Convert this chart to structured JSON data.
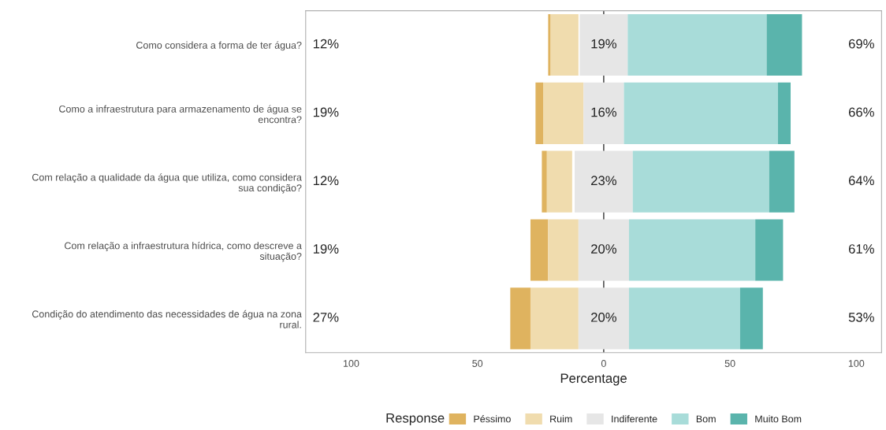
{
  "chart_data": {
    "type": "bar",
    "orientation": "horizontal",
    "xlabel": "Percentage",
    "legend_title": "Response",
    "legend": "bottom",
    "grid": false,
    "categories": [
      "Como considera a forma de ter água?",
      "Como a infraestrutura para armazenamento de água se\nencontra?",
      "Com relação a qualidade da água que utiliza, como considera\nsua condição?",
      "Com relação a infraestrutura hídrica, como descreve a\nsituação?",
      "Condição do atendimento das necessidades de água na zona\nrural."
    ],
    "series": [
      {
        "name": "Péssimo",
        "color": "#dfb35f",
        "values": [
          1,
          3,
          2,
          7,
          8
        ],
        "base": [
          -22,
          -27,
          -24.5,
          -29,
          -37
        ]
      },
      {
        "name": "Ruim",
        "color": "#f0dcae",
        "values": [
          11,
          16,
          10,
          12,
          19
        ],
        "base": [
          -21,
          -24,
          -22.5,
          -22,
          -29
        ]
      },
      {
        "name": "Indiferente",
        "color": "#e6e6e6",
        "values": [
          19,
          16,
          23,
          20,
          20
        ],
        "base": [
          -9.5,
          -8,
          -11.5,
          -10,
          -10
        ]
      },
      {
        "name": "Bom",
        "color": "#a8dcd9",
        "values": [
          55,
          61,
          54,
          50,
          44
        ],
        "base": [
          9.5,
          8,
          11.5,
          10,
          10
        ]
      },
      {
        "name": "Muito Bom",
        "color": "#5ab4ac",
        "values": [
          14,
          5,
          10,
          11,
          9
        ],
        "base": [
          64.5,
          69,
          65.5,
          60,
          54
        ]
      }
    ],
    "xlim": [
      -118,
      110
    ],
    "xticks": [
      {
        "value": -100,
        "label": "100"
      },
      {
        "value": -50,
        "label": "50"
      },
      0,
      50,
      100
    ],
    "ref_lines": [
      {
        "axis": "x",
        "value": 0,
        "color": "#333333"
      }
    ],
    "annotations": [
      "12%",
      "19%",
      "69%",
      "19%",
      "16%",
      "66%",
      "12%",
      "23%",
      "64%",
      "19%",
      "20%",
      "61%",
      "27%",
      "20%",
      "53%"
    ]
  }
}
